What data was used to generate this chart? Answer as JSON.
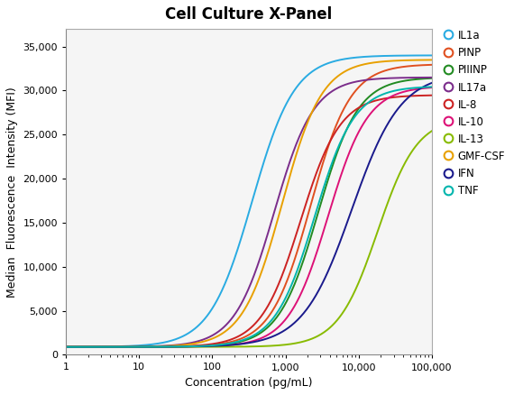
{
  "title": "Cell Culture X-Panel",
  "xlabel": "Concentration (pg/mL)",
  "ylabel": "Median  Fluorescence  Intensity (MFI)",
  "xlim": [
    1,
    100000
  ],
  "ylim": [
    0,
    37000
  ],
  "yticks": [
    0,
    5000,
    10000,
    15000,
    20000,
    25000,
    30000,
    35000
  ],
  "series": [
    {
      "name": "IL1a",
      "color": "#29ABE2",
      "ec50": 350,
      "hill": 1.5,
      "bottom": 900,
      "top": 34000
    },
    {
      "name": "PINP",
      "color": "#E05020",
      "ec50": 2200,
      "hill": 1.6,
      "bottom": 900,
      "top": 33000
    },
    {
      "name": "PIIINP",
      "color": "#228B22",
      "ec50": 2800,
      "hill": 1.6,
      "bottom": 900,
      "top": 31500
    },
    {
      "name": "IL17a",
      "color": "#7B2D8B",
      "ec50": 700,
      "hill": 1.6,
      "bottom": 900,
      "top": 31500
    },
    {
      "name": "IL-8",
      "color": "#CC2222",
      "ec50": 1600,
      "hill": 1.6,
      "bottom": 900,
      "top": 29500
    },
    {
      "name": "IL-10",
      "color": "#DD1177",
      "ec50": 3800,
      "hill": 1.6,
      "bottom": 900,
      "top": 30500
    },
    {
      "name": "IL-13",
      "color": "#88BB00",
      "ec50": 18000,
      "hill": 1.6,
      "bottom": 900,
      "top": 27000
    },
    {
      "name": "GMF-CSF",
      "color": "#E8A000",
      "ec50": 900,
      "hill": 1.6,
      "bottom": 900,
      "top": 33500
    },
    {
      "name": "IFN",
      "color": "#1A1A8C",
      "ec50": 8000,
      "hill": 1.3,
      "bottom": 900,
      "top": 32000
    },
    {
      "name": "TNF",
      "color": "#00B5AD",
      "ec50": 2500,
      "hill": 1.6,
      "bottom": 900,
      "top": 30500
    }
  ],
  "legend_marker_size": 7,
  "title_fontsize": 12,
  "axis_label_fontsize": 9,
  "tick_fontsize": 8,
  "bg_color": "#f5f5f5"
}
